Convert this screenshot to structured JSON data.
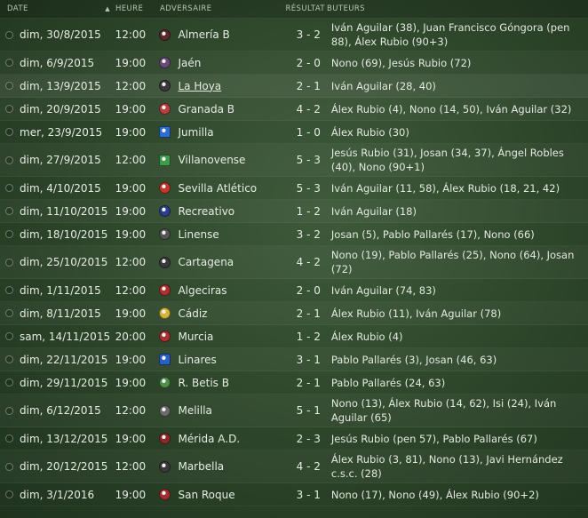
{
  "columns": {
    "date": "DATE",
    "sort_indicator": "▲",
    "time": "HEURE",
    "opponent": "ADVERSAIRE",
    "result": "RÉSULTAT",
    "scorers": "BUTEURS"
  },
  "matches": [
    {
      "date": "dim, 30/8/2015",
      "time": "12:00",
      "opponent": "Almería B",
      "result": "3 - 2",
      "scorers": "Iván Aguilar (38), Juan Francisco Góngora (pen 88), Álex Rubio (90+3)",
      "crest": "#5a2a2a"
    },
    {
      "date": "dim, 6/9/2015",
      "time": "19:00",
      "opponent": "Jaén",
      "result": "2 - 0",
      "scorers": "Nono (69), Jesús Rubio (72)",
      "crest": "#6b4a7a"
    },
    {
      "date": "dim, 13/9/2015",
      "time": "12:00",
      "opponent": "La Hoya",
      "result": "2 - 1",
      "scorers": "Iván Aguilar (28, 40)",
      "crest": "#3a3a3a"
    },
    {
      "date": "dim, 20/9/2015",
      "time": "19:00",
      "opponent": "Granada B",
      "result": "4 - 2",
      "scorers": "Álex Rubio (4), Nono (14, 50), Iván Aguilar (32)",
      "crest": "#b84040"
    },
    {
      "date": "mer, 23/9/2015",
      "time": "19:00",
      "opponent": "Jumilla",
      "result": "1 - 0",
      "scorers": "Álex Rubio (30)",
      "crest": "#2d6fcf"
    },
    {
      "date": "dim, 27/9/2015",
      "time": "12:00",
      "opponent": "Villanovense",
      "result": "5 - 3",
      "scorers": "Jesús Rubio (31), Josan (34, 37), Ángel Robles (40), Nono (90+1)",
      "crest": "#3f9a4a"
    },
    {
      "date": "dim, 4/10/2015",
      "time": "19:00",
      "opponent": "Sevilla Atlético",
      "result": "5 - 3",
      "scorers": "Iván Aguilar (11, 58), Álex Rubio (18, 21, 42)",
      "crest": "#c0392b"
    },
    {
      "date": "dim, 11/10/2015",
      "time": "19:00",
      "opponent": "Recreativo",
      "result": "1 - 2",
      "scorers": "Iván Aguilar (18)",
      "crest": "#2b3f8a"
    },
    {
      "date": "dim, 18/10/2015",
      "time": "19:00",
      "opponent": "Linense",
      "result": "3 - 2",
      "scorers": "Josan (5), Pablo Pallarés (17), Nono (66)",
      "crest": "#555555"
    },
    {
      "date": "dim, 25/10/2015",
      "time": "12:00",
      "opponent": "Cartagena",
      "result": "4 - 2",
      "scorers": "Nono (19), Pablo Pallarés (25), Nono (64), Josan (72)",
      "crest": "#3a3a3a"
    },
    {
      "date": "dim, 1/11/2015",
      "time": "12:00",
      "opponent": "Algeciras",
      "result": "2 - 0",
      "scorers": "Iván Aguilar (74, 83)",
      "crest": "#b03030"
    },
    {
      "date": "dim, 8/11/2015",
      "time": "19:00",
      "opponent": "Cádiz",
      "result": "2 - 1",
      "scorers": "Álex Rubio (11), Iván Aguilar (78)",
      "crest": "#d4b43a"
    },
    {
      "date": "sam, 14/11/2015",
      "time": "20:00",
      "opponent": "Murcia",
      "result": "1 - 2",
      "scorers": "Álex Rubio (4)",
      "crest": "#a83232"
    },
    {
      "date": "dim, 22/11/2015",
      "time": "19:00",
      "opponent": "Linares",
      "result": "3 - 1",
      "scorers": "Pablo Pallarés (3), Josan (46, 63)",
      "crest": "#2a5fc4"
    },
    {
      "date": "dim, 29/11/2015",
      "time": "19:00",
      "opponent": "R. Betis B",
      "result": "2 - 1",
      "scorers": "Pablo Pallarés (24, 63)",
      "crest": "#4f8f4a"
    },
    {
      "date": "dim, 6/12/2015",
      "time": "12:00",
      "opponent": "Melilla",
      "result": "5 - 1",
      "scorers": "Nono (13), Álex Rubio (14, 62), Isi (24), Iván Aguilar (65)",
      "crest": "#6a6a6a"
    },
    {
      "date": "dim, 13/12/2015",
      "time": "19:00",
      "opponent": "Mérida A.D.",
      "result": "2 - 3",
      "scorers": "Jesús Rubio (pen 57), Pablo Pallarés (67)",
      "crest": "#8a2a2a"
    },
    {
      "date": "dim, 20/12/2015",
      "time": "12:00",
      "opponent": "Marbella",
      "result": "4 - 2",
      "scorers": "Álex Rubio (3, 81), Nono (13), Javi Hernández c.s.c. (28)",
      "crest": "#3a3a3a"
    },
    {
      "date": "dim, 3/1/2016",
      "time": "19:00",
      "opponent": "San Roque",
      "result": "3 - 1",
      "scorers": "Nono (17), Nono (49), Álex Rubio (90+2)",
      "crest": "#a03030"
    }
  ]
}
